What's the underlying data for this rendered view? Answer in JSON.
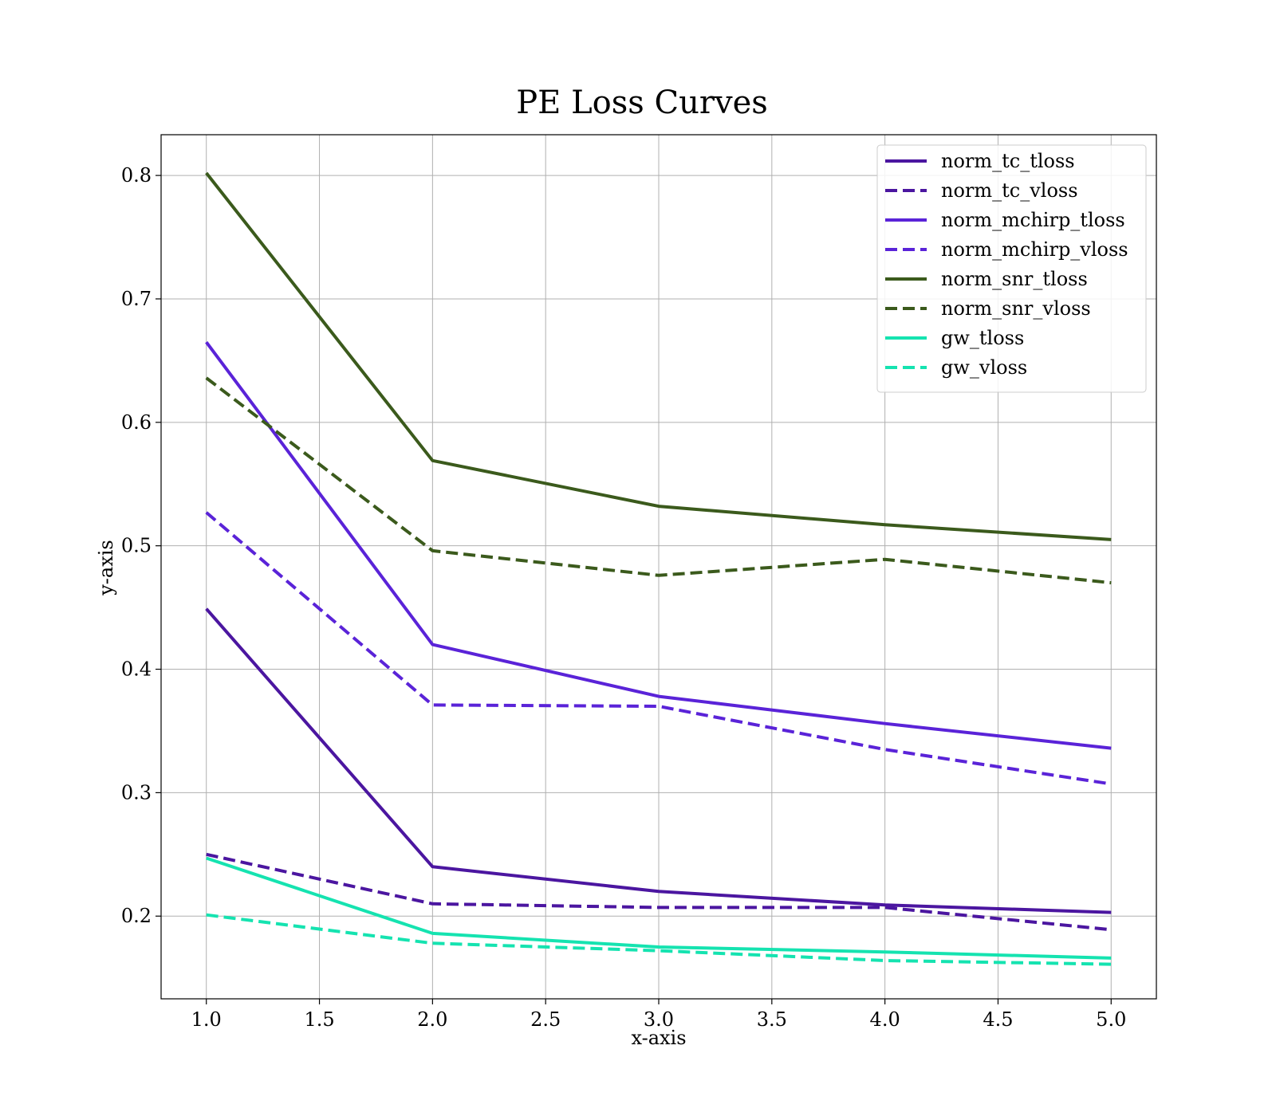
{
  "chart_data": {
    "type": "line",
    "title": "PE Loss Curves",
    "xlabel": "x-axis",
    "ylabel": "y-axis",
    "xlim": [
      0.8,
      5.2
    ],
    "ylim": [
      0.133,
      0.833
    ],
    "xticks": [
      1.0,
      1.5,
      2.0,
      2.5,
      3.0,
      3.5,
      4.0,
      4.5,
      5.0
    ],
    "xtick_labels": [
      "1.0",
      "1.5",
      "2.0",
      "2.5",
      "3.0",
      "3.5",
      "4.0",
      "4.5",
      "5.0"
    ],
    "yticks": [
      0.2,
      0.3,
      0.4,
      0.5,
      0.6,
      0.7,
      0.8
    ],
    "ytick_labels": [
      "0.2",
      "0.3",
      "0.4",
      "0.5",
      "0.6",
      "0.7",
      "0.8"
    ],
    "grid": true,
    "legend_position": "top-right",
    "x": [
      1,
      2,
      3,
      4,
      5
    ],
    "series": [
      {
        "name": "norm_tc_tloss",
        "values": [
          0.449,
          0.24,
          0.22,
          0.209,
          0.203
        ],
        "color": "#4b16a0",
        "dashed": false
      },
      {
        "name": "norm_tc_vloss",
        "values": [
          0.25,
          0.21,
          0.207,
          0.207,
          0.189
        ],
        "color": "#4b16a0",
        "dashed": true
      },
      {
        "name": "norm_mchirp_tloss",
        "values": [
          0.665,
          0.42,
          0.378,
          0.356,
          0.336
        ],
        "color": "#5a23d8",
        "dashed": false
      },
      {
        "name": "norm_mchirp_vloss",
        "values": [
          0.527,
          0.371,
          0.37,
          0.335,
          0.307
        ],
        "color": "#5a23d8",
        "dashed": true
      },
      {
        "name": "norm_snr_tloss",
        "values": [
          0.802,
          0.569,
          0.532,
          0.517,
          0.505
        ],
        "color": "#3b5a1c",
        "dashed": false
      },
      {
        "name": "norm_snr_vloss",
        "values": [
          0.636,
          0.496,
          0.476,
          0.489,
          0.47
        ],
        "color": "#3b5a1c",
        "dashed": true
      },
      {
        "name": "gw_tloss",
        "values": [
          0.247,
          0.186,
          0.175,
          0.171,
          0.166
        ],
        "color": "#15e3b0",
        "dashed": false
      },
      {
        "name": "gw_vloss",
        "values": [
          0.201,
          0.178,
          0.172,
          0.164,
          0.161
        ],
        "color": "#15e3b0",
        "dashed": true
      }
    ]
  }
}
